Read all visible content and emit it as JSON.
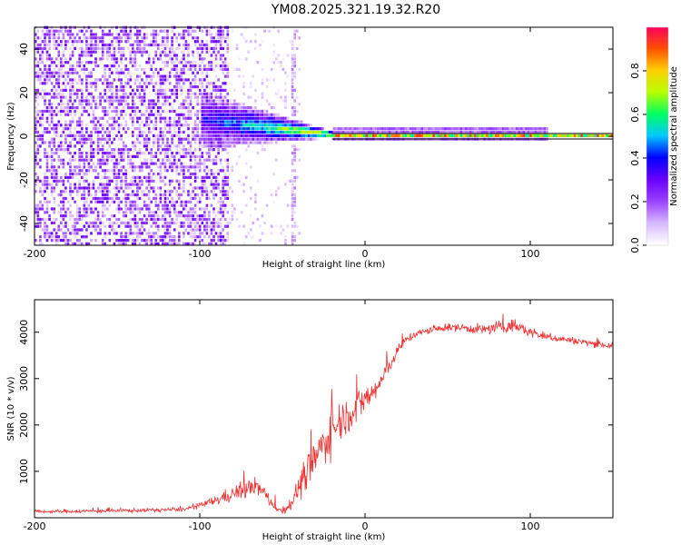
{
  "title": "YM08.2025.321.19.32.R20",
  "colors": {
    "snr_line": "#f03030",
    "frame": "#000000",
    "bg": "#ffffff"
  },
  "chart_data": [
    {
      "type": "heatmap",
      "name": "spectrogram",
      "xlabel": "Height of straight line (km)",
      "ylabel": "Frequency (Hz)",
      "xlim": [
        -200,
        150
      ],
      "ylim": [
        -50,
        50
      ],
      "xticks": [
        -200,
        -100,
        0,
        100
      ],
      "yticks": [
        -40,
        -20,
        0,
        20,
        40
      ],
      "grid": false,
      "colorbar": {
        "label": "Normalized spectral amplitude",
        "range": [
          0,
          1
        ],
        "ticks": [
          "0.0",
          "0.2",
          "0.4",
          "0.6",
          "0.8"
        ],
        "colormap": [
          "#ffffff",
          "#d8b8ff",
          "#9a40ff",
          "#6a00ff",
          "#0000ff",
          "#00c8ff",
          "#00ff60",
          "#b8ff00",
          "#ffd000",
          "#ff5000",
          "#ff0060"
        ]
      },
      "features": [
        {
          "region": "noise",
          "x_range": [
            -200,
            -83
          ],
          "freq_range": [
            -50,
            50
          ],
          "amplitude": 0.15
        },
        {
          "region": "faint noise",
          "x_range": [
            -83,
            -40
          ],
          "freq_range": [
            -50,
            50
          ],
          "amplitude": 0.05
        },
        {
          "region": "stripe",
          "x_range": [
            -45,
            -42
          ],
          "freq_range": [
            -50,
            50
          ],
          "amplitude": 0.05
        },
        {
          "region": "converging band",
          "x_range": [
            -100,
            -20
          ],
          "freq_center": 0,
          "amplitude": 0.45
        },
        {
          "region": "carrier line",
          "x_range": [
            -20,
            150
          ],
          "freq": 0,
          "amplitude": 0.95
        }
      ]
    },
    {
      "type": "line",
      "name": "snr",
      "xlabel": "Height of straight line (km)",
      "ylabel": "SNR (10 * v/v)",
      "xlim": [
        -200,
        150
      ],
      "ylim": [
        0,
        4700
      ],
      "xticks": [
        -200,
        -100,
        0,
        100
      ],
      "yticks": [
        1000,
        2000,
        3000,
        4000
      ],
      "grid": false,
      "series": [
        {
          "name": "SNR",
          "x": [
            -200,
            -150,
            -110,
            -100,
            -90,
            -80,
            -70,
            -65,
            -60,
            -55,
            -50,
            -45,
            -40,
            -35,
            -30,
            -25,
            -20,
            -15,
            -10,
            -5,
            0,
            5,
            10,
            15,
            20,
            25,
            30,
            40,
            50,
            60,
            70,
            80,
            90,
            100,
            110,
            120,
            130,
            140,
            150
          ],
          "mean": [
            130,
            150,
            180,
            260,
            380,
            520,
            640,
            680,
            480,
            250,
            130,
            300,
            650,
            950,
            1300,
            1600,
            1900,
            2100,
            2250,
            2400,
            2550,
            2700,
            2950,
            3300,
            3600,
            3850,
            3950,
            4050,
            4100,
            4100,
            4050,
            4100,
            4150,
            4000,
            3900,
            3850,
            3800,
            3750,
            3700
          ],
          "noise": [
            60,
            70,
            70,
            100,
            180,
            280,
            350,
            300,
            250,
            150,
            100,
            250,
            450,
            650,
            750,
            800,
            850,
            700,
            650,
            600,
            550,
            500,
            400,
            250,
            200,
            150,
            150,
            130,
            130,
            150,
            200,
            230,
            250,
            180,
            150,
            130,
            120,
            120,
            120
          ]
        }
      ]
    }
  ]
}
